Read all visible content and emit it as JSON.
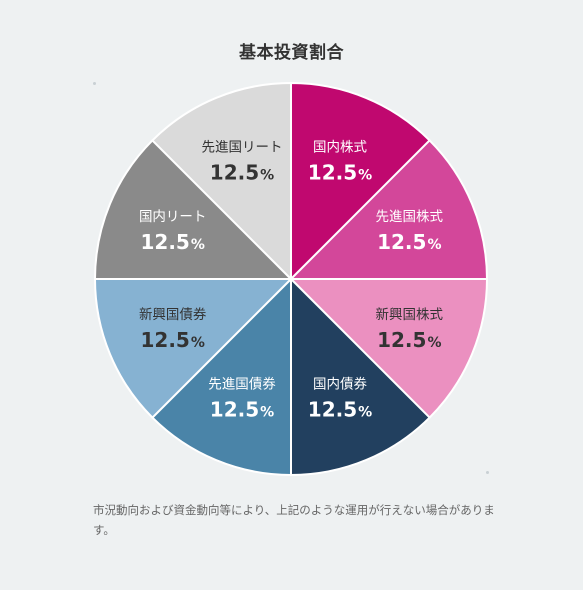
{
  "chart_data": {
    "type": "pie",
    "title": "基本投資割合",
    "unit": "%",
    "categories": [
      "国内株式",
      "先進国株式",
      "新興国株式",
      "国内債券",
      "先進国債券",
      "新興国債券",
      "国内リート",
      "先進国リート"
    ],
    "values": [
      12.5,
      12.5,
      12.5,
      12.5,
      12.5,
      12.5,
      12.5,
      12.5
    ],
    "value_labels": [
      "12.5",
      "12.5",
      "12.5",
      "12.5",
      "12.5",
      "12.5",
      "12.5",
      "12.5"
    ],
    "colors": [
      "#c0086f",
      "#d3479a",
      "#eb90c0",
      "#22405f",
      "#4a84a8",
      "#86b2d2",
      "#8a8a8a",
      "#dadada"
    ],
    "label_colors": [
      "#ffffff",
      "#ffffff",
      "#333333",
      "#ffffff",
      "#ffffff",
      "#333333",
      "#ffffff",
      "#333333"
    ],
    "start": "12 o'clock",
    "direction": "clockwise"
  },
  "footnote": "市況動向および資金動向等により、上記のような運用が行えない場合があります。"
}
